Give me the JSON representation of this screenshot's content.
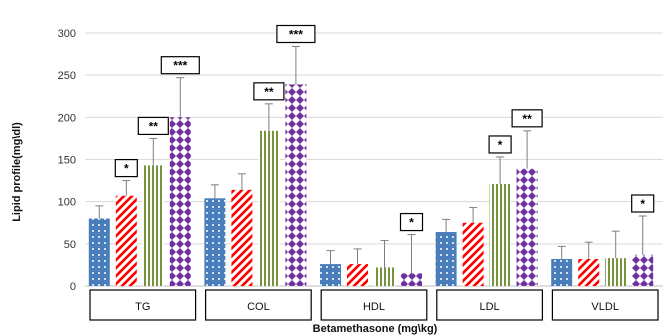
{
  "chart_data": {
    "type": "bar",
    "title": "",
    "xlabel": "Betamethasone (mg\\kg)",
    "ylabel": "Lipid profile(mg\\dl)",
    "ylim": [
      0,
      300
    ],
    "yticks": [
      "0",
      "50",
      "100",
      "150",
      "200",
      "250",
      "300"
    ],
    "categories": [
      "TG",
      "COL",
      "HDL",
      "LDL",
      "VLDL"
    ],
    "grid": true,
    "legend": "none",
    "series": [
      {
        "color": "#4a7ebb",
        "pattern": "dots-white-on-blue",
        "values": [
          80,
          104,
          26,
          64,
          32
        ],
        "errors": [
          15,
          16,
          16,
          15,
          15
        ]
      },
      {
        "color": "#ff0000",
        "pattern": "red-diagonal-stripes",
        "values": [
          107,
          114,
          26,
          75,
          32
        ],
        "errors": [
          18,
          19,
          18,
          18,
          20
        ]
      },
      {
        "color": "#77933c",
        "pattern": "green-vertical-stripes",
        "values": [
          143,
          184,
          22,
          121,
          33
        ],
        "errors": [
          32,
          32,
          32,
          32,
          32
        ]
      },
      {
        "color": "#7030a0",
        "pattern": "purple-diamonds",
        "values": [
          200,
          239,
          15,
          139,
          37
        ],
        "errors": [
          47,
          45,
          46,
          45,
          46
        ]
      }
    ],
    "annotations": [
      {
        "category": 0,
        "series": 1,
        "text": "*"
      },
      {
        "category": 0,
        "series": 2,
        "text": "**"
      },
      {
        "category": 0,
        "series": 3,
        "text": "***"
      },
      {
        "category": 1,
        "series": 2,
        "text": "**"
      },
      {
        "category": 1,
        "series": 3,
        "text": "***"
      },
      {
        "category": 2,
        "series": 3,
        "text": "*"
      },
      {
        "category": 3,
        "series": 2,
        "text": "*"
      },
      {
        "category": 3,
        "series": 3,
        "text": "**"
      },
      {
        "category": 4,
        "series": 3,
        "text": "*"
      }
    ]
  }
}
